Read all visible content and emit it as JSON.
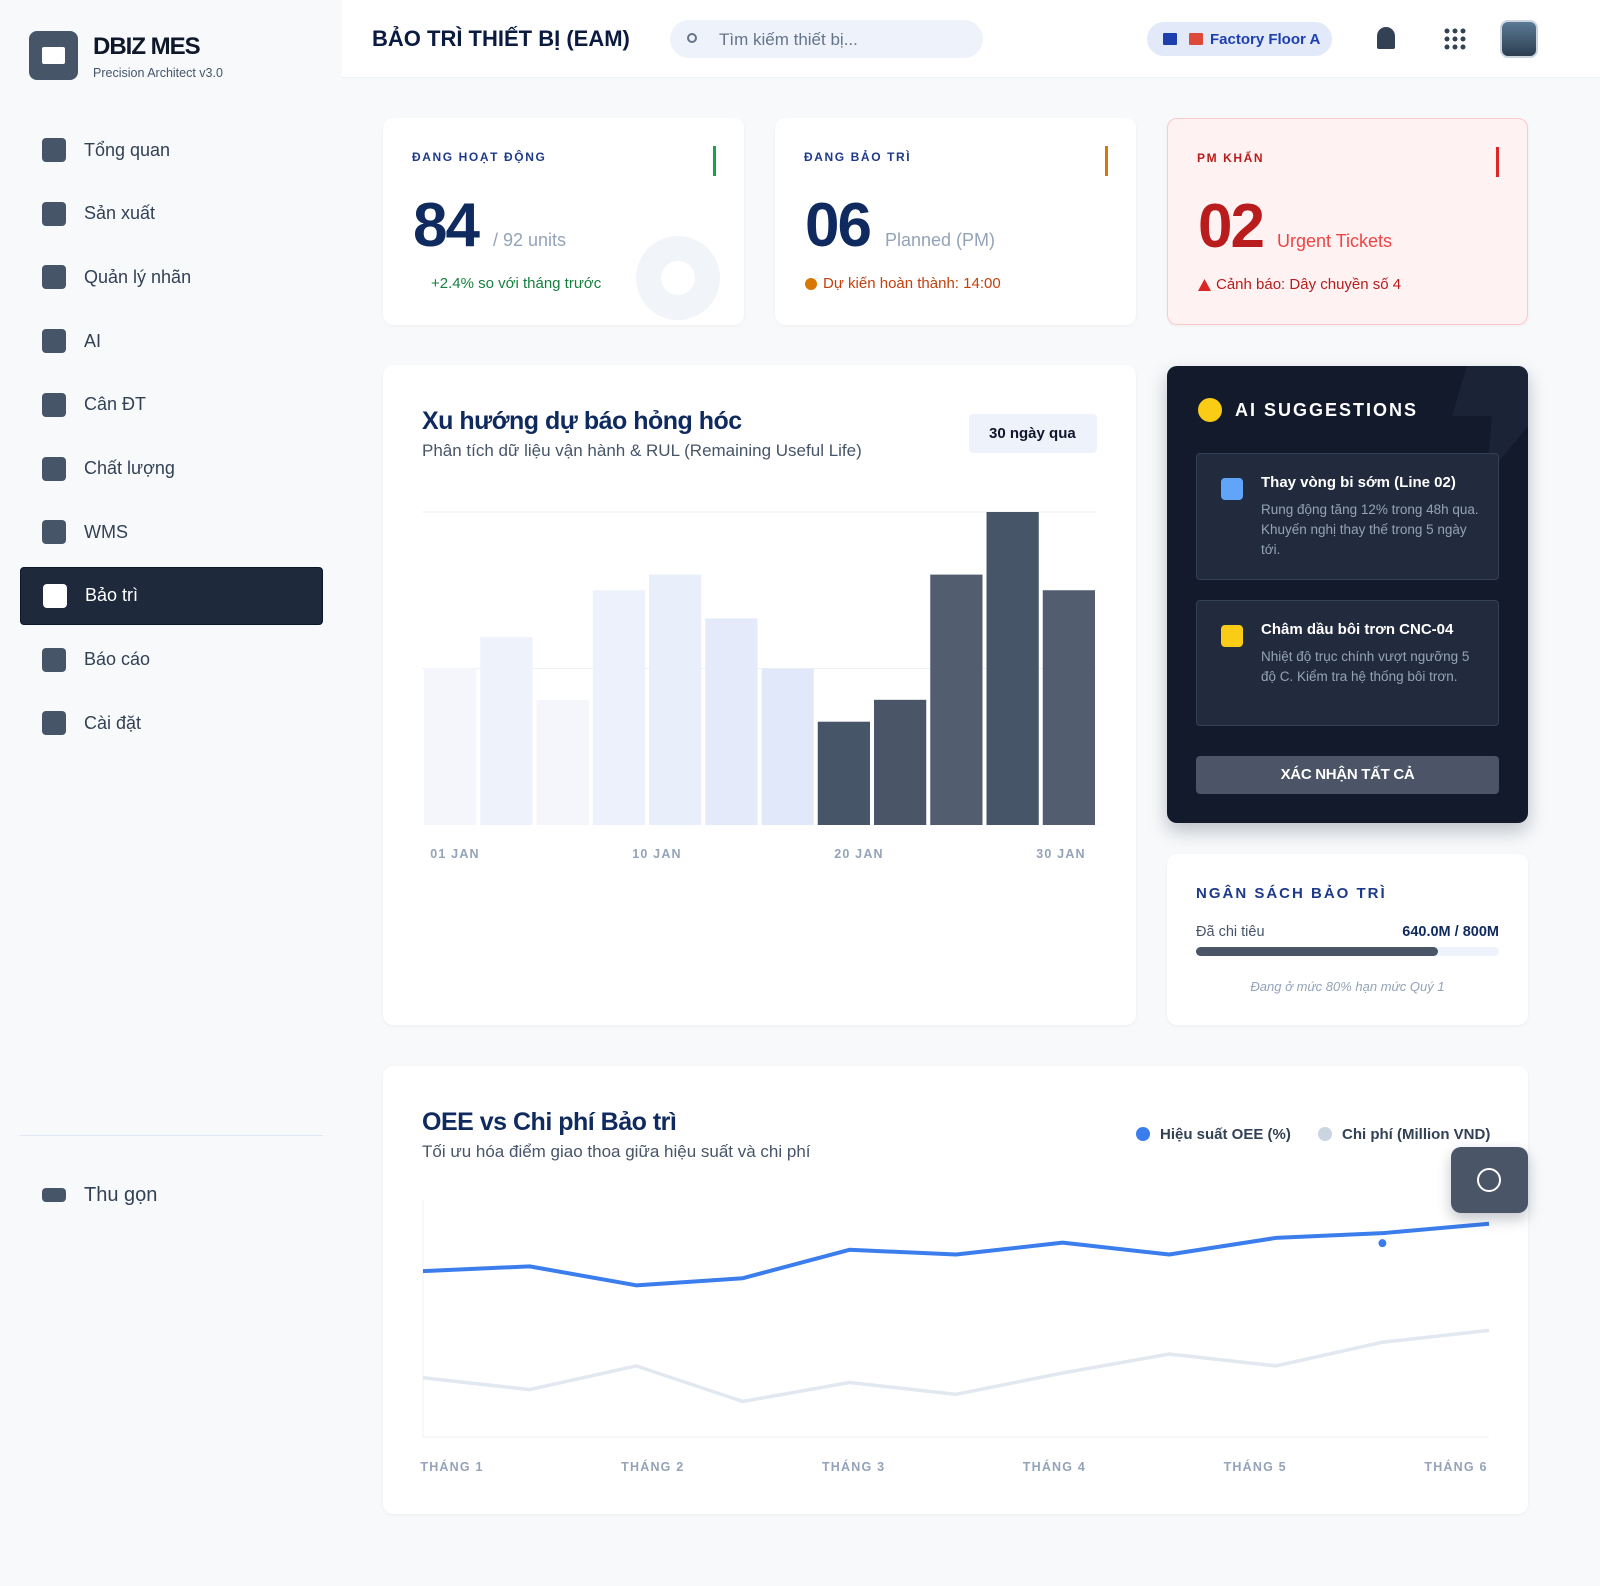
{
  "sidebar": {
    "brand": "DBIZ MES",
    "subtitle": "Precision Architect v3.0",
    "nav": [
      "Tổng quan",
      "Sản xuất",
      "Quản lý nhãn",
      "AI",
      "Cân ĐT",
      "Chất lượng",
      "WMS",
      "Bảo trì",
      "Báo cáo",
      "Cài đặt"
    ],
    "collapse": "Thu gọn"
  },
  "header": {
    "title": "BẢO TRÌ THIẾT BỊ (EAM)",
    "search_placeholder": "Tìm kiếm thiết bị...",
    "location": "Factory Floor A"
  },
  "stats": [
    {
      "label": "ĐANG HOẠT ĐỘNG",
      "value": "84",
      "unit": "/ 92 units",
      "note": "+2.4% so với tháng trước"
    },
    {
      "label": "ĐANG BẢO TRÌ",
      "value": "06",
      "unit": "Planned (PM)",
      "note": "Dự kiến hoàn thành: 14:00"
    },
    {
      "label": "PM KHẨN",
      "value": "02",
      "unit": "Urgent Tickets",
      "note": "Cảnh báo: Dây chuyền số 4"
    }
  ],
  "chart_data": [
    {
      "type": "bar",
      "title": "Xu hướng dự báo hỏng hóc",
      "subtitle": "Phân tích dữ liệu vận hành & RUL (Remaining Useful Life)",
      "range": "30 ngày qua",
      "categories": [
        null,
        null,
        null,
        null,
        null,
        null,
        null,
        null,
        null,
        null,
        null,
        null
      ],
      "values": [
        50,
        60,
        40,
        75,
        80,
        66,
        50,
        33,
        40,
        80,
        100,
        75
      ],
      "colors": [
        "#f4f6fb",
        "#eef2fb",
        "#f4f6fb",
        "#edf1fb",
        "#e9eefb",
        "#e4eafa",
        "#e1e8f9",
        "#475569",
        "#4b5568",
        "#525d70",
        "#475569",
        "#525d70"
      ],
      "x_labels": [
        "01 JAN",
        "10 JAN",
        "20 JAN",
        "30 JAN"
      ],
      "ylim": [
        0,
        100
      ],
      "gridlines": [
        50,
        100
      ]
    },
    {
      "type": "line",
      "title": "OEE vs Chi phí Bảo trì",
      "subtitle": "Tối ưu hóa điểm giao thoa giữa hiệu suất và chi phí",
      "x_labels": [
        "THÁNG 1",
        "THÁNG 2",
        "THÁNG 3",
        "THÁNG 4",
        "THÁNG 5",
        "THÁNG 6"
      ],
      "x": [
        0,
        1,
        2,
        3,
        4,
        5,
        6,
        7,
        8,
        9,
        10
      ],
      "xlim": [
        0,
        10
      ],
      "ylim": [
        0,
        100
      ],
      "series": [
        {
          "name": "Hiệu suất OEE (%)",
          "color": "#3b7ded",
          "values": [
            70,
            72,
            64,
            67,
            79,
            77,
            82,
            77,
            84,
            86,
            90
          ]
        },
        {
          "name": "Chi phí (Million VND)",
          "color": "#e2e8f0",
          "values": [
            25,
            20,
            30,
            15,
            23,
            18,
            27,
            35,
            30,
            40,
            45
          ]
        }
      ]
    }
  ],
  "ai": {
    "title": "AI SUGGESTIONS",
    "items": [
      {
        "title": "Thay vòng bi sớm (Line 02)",
        "text": "Rung động tăng 12% trong 48h qua. Khuyến nghị thay thế trong 5 ngày tới."
      },
      {
        "title": "Châm dầu bôi trơn CNC-04",
        "text": "Nhiệt độ trục chính vượt ngưỡng 5 độ C. Kiểm tra hệ thống bôi trơn."
      }
    ],
    "button": "XÁC NHẬN TẤT CẢ"
  },
  "budget": {
    "title": "NGÂN SÁCH BẢO TRÌ",
    "label": "Đã chi tiêu",
    "value": "640.0M / 800M",
    "progress": 80,
    "note": "Đang ở mức 80% hạn mức Quý 1"
  }
}
